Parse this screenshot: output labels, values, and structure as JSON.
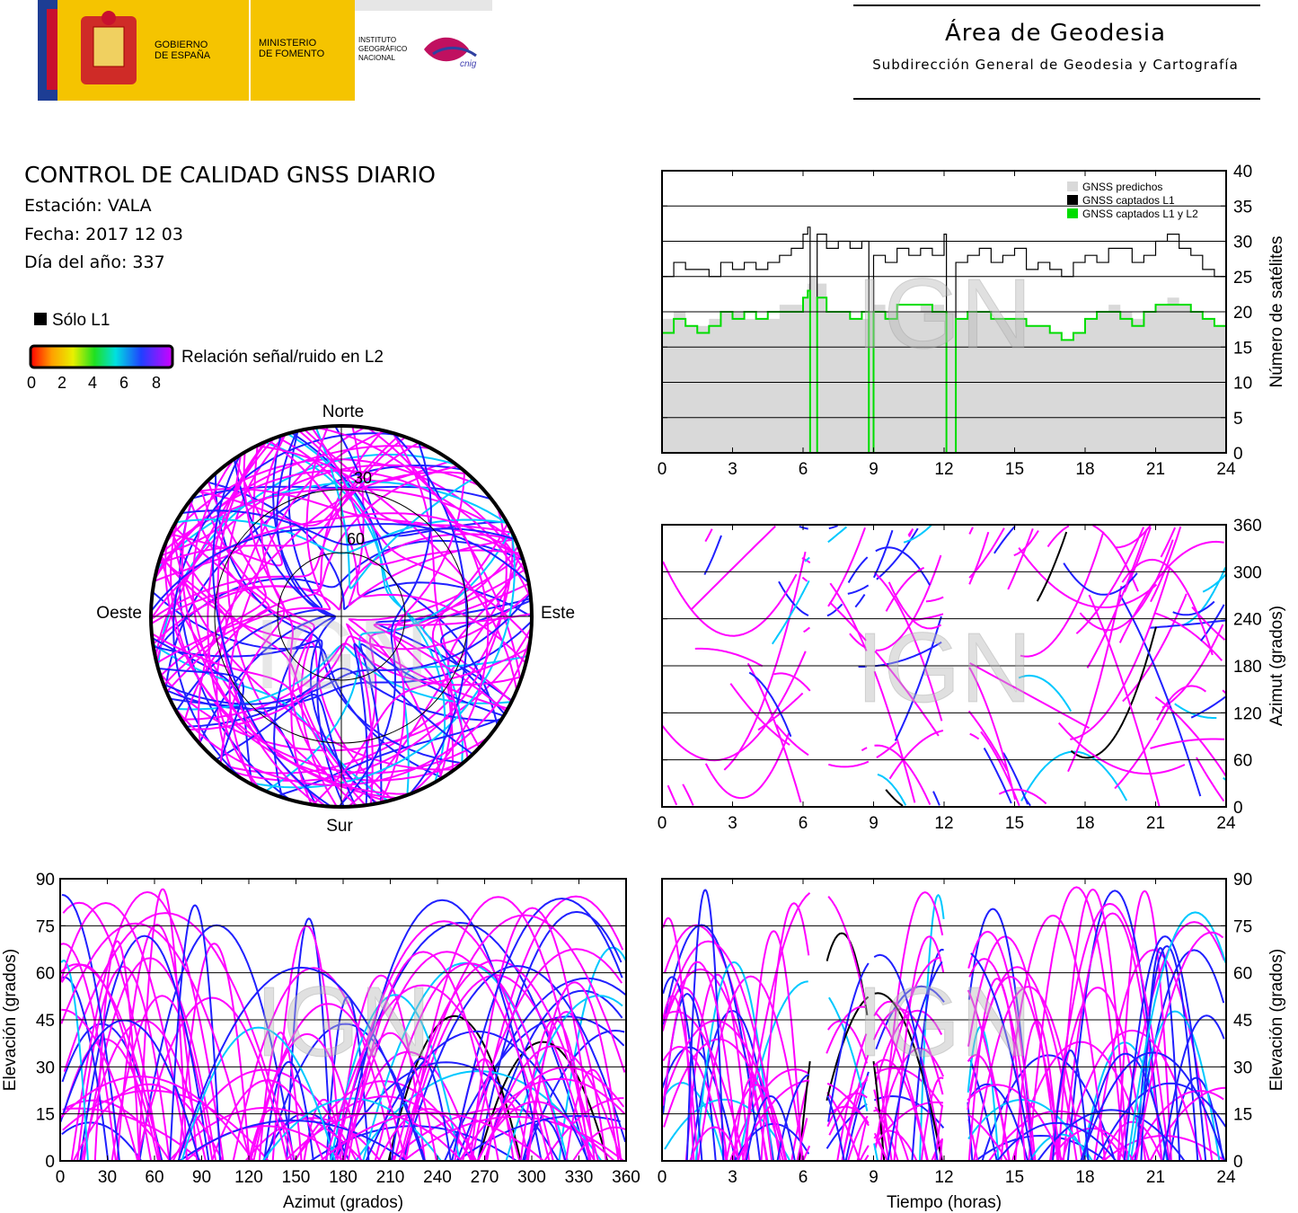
{
  "header": {
    "logo_gov": "GOBIERNO\nDE ESPAÑA",
    "logo_ministry": "MINISTERIO\nDE FOMENTO",
    "logo_institute": "INSTITUTO\nGEOGRÁFICO\nNACIONAL",
    "logo_cnig": "cnig",
    "area_title": "Área de Geodesia",
    "area_subtitle": "Subdirección General de Geodesia y Cartografía"
  },
  "report": {
    "title": "CONTROL DE CALIDAD GNSS DIARIO",
    "station": "Estación: VALA",
    "date": "Fecha: 2017 12 03",
    "doy": "Día del año: 337"
  },
  "legend": {
    "l1_only": "Sólo L1",
    "snr_label": "Relación señal/ruido en L2",
    "snr_ticks": [
      "0",
      "2",
      "4",
      "6",
      "8"
    ],
    "colors": {
      "l1_only": "#000000",
      "snr_low": "#ff0000",
      "snr_high": "#ff00ff",
      "main": "#ff00ff",
      "blue": "#2020ff",
      "cyan": "#00c8ff"
    }
  },
  "watermark": "IGN",
  "chart_data": [
    {
      "type": "line",
      "name": "satellite-count",
      "xlim": [
        0,
        24
      ],
      "ylim": [
        0,
        40
      ],
      "xticks": [
        "0",
        "3",
        "6",
        "9",
        "12",
        "15",
        "18",
        "21",
        "24"
      ],
      "yticks": [
        "0",
        "5",
        "10",
        "15",
        "20",
        "25",
        "30",
        "35",
        "40"
      ],
      "ylabel": "Número de satélites",
      "legend": [
        "GNSS predichos",
        "GNSS captados L1",
        "GNSS captados L1 y L2"
      ],
      "series_colors": [
        "#d9d9d9",
        "#000000",
        "#00dd00"
      ],
      "x": [
        0,
        0.5,
        1,
        1.5,
        2,
        2.5,
        3,
        3.5,
        4,
        4.5,
        5,
        5.5,
        6,
        6.2,
        6.3,
        6.6,
        7,
        7.5,
        8,
        8.5,
        8.8,
        9,
        9.5,
        10,
        10.5,
        11,
        11.5,
        12,
        12.1,
        12.5,
        13,
        13.5,
        14,
        14.5,
        15,
        15.5,
        16,
        16.5,
        17,
        17.5,
        18,
        18.5,
        19,
        19.5,
        20,
        20.5,
        21,
        21.5,
        22,
        22.5,
        23,
        23.5,
        24
      ],
      "predicted": [
        19,
        20,
        18,
        18,
        19,
        20,
        20,
        19,
        19,
        19,
        21,
        21,
        22,
        24,
        25,
        24,
        20,
        20,
        19,
        19,
        20,
        21,
        20,
        20,
        20,
        21,
        21,
        20,
        20,
        19,
        20,
        20,
        19,
        19,
        19,
        18,
        18,
        17,
        16,
        17,
        19,
        20,
        21,
        20,
        19,
        20,
        21,
        22,
        21,
        20,
        19,
        18,
        18
      ],
      "l1": [
        25,
        27,
        26,
        26,
        25,
        27,
        26,
        27,
        26,
        27,
        28,
        29,
        31,
        32,
        0,
        31,
        29,
        30,
        29,
        30,
        0,
        28,
        27,
        29,
        28,
        29,
        28,
        31,
        0,
        27,
        28,
        29,
        27,
        28,
        29,
        26,
        27,
        26,
        25,
        27,
        28,
        27,
        29,
        29,
        27,
        28,
        30,
        31,
        29,
        28,
        26,
        25,
        25
      ],
      "l1l2": [
        17,
        19,
        18,
        17,
        18,
        20,
        19,
        20,
        19,
        20,
        20,
        20,
        22,
        23,
        0,
        22,
        20,
        20,
        19,
        20,
        0,
        20,
        19,
        21,
        21,
        21,
        20,
        20,
        0,
        19,
        20,
        20,
        19,
        19,
        19,
        18,
        18,
        17,
        16,
        17,
        19,
        20,
        20,
        19,
        18,
        20,
        21,
        21,
        21,
        20,
        19,
        18,
        18
      ]
    },
    {
      "type": "scatter",
      "name": "azimuth-vs-time",
      "xlim": [
        0,
        24
      ],
      "ylim": [
        0,
        360
      ],
      "xticks": [
        "0",
        "3",
        "6",
        "9",
        "12",
        "15",
        "18",
        "21",
        "24"
      ],
      "yticks": [
        "0",
        "60",
        "120",
        "180",
        "240",
        "300",
        "360"
      ],
      "ylabel": "Azimut (grados)"
    },
    {
      "type": "scatter",
      "name": "elevation-vs-azimuth",
      "xlim": [
        0,
        360
      ],
      "ylim": [
        0,
        90
      ],
      "xticks": [
        "0",
        "30",
        "60",
        "90",
        "120",
        "150",
        "180",
        "210",
        "240",
        "270",
        "300",
        "330",
        "360"
      ],
      "yticks": [
        "0",
        "15",
        "30",
        "45",
        "60",
        "75",
        "90"
      ],
      "xlabel": "Azimut (grados)",
      "ylabel": "Elevación (grados)"
    },
    {
      "type": "scatter",
      "name": "elevation-vs-time",
      "xlim": [
        0,
        24
      ],
      "ylim": [
        0,
        90
      ],
      "xticks": [
        "0",
        "3",
        "6",
        "9",
        "12",
        "15",
        "18",
        "21",
        "24"
      ],
      "yticks": [
        "0",
        "15",
        "30",
        "45",
        "60",
        "75",
        "90"
      ],
      "xlabel": "Tiempo (horas)",
      "ylabel": "Elevación (grados)"
    },
    {
      "type": "scatter",
      "name": "skyplot",
      "cardinals": {
        "north": "Norte",
        "south": "Sur",
        "east": "Este",
        "west": "Oeste"
      },
      "rings": [
        "30",
        "60"
      ]
    }
  ]
}
